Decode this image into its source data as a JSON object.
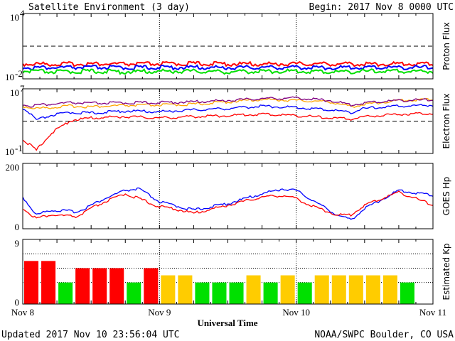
{
  "header": {
    "title": "Satellite Environment (3 day)",
    "begin": "Begin:  2017 Nov 8 0000 UTC"
  },
  "footer": {
    "updated": "Updated 2017 Nov 10 23:56:04 UTC",
    "credit": "NOAA/SWPC Boulder, CO USA"
  },
  "x_axis": {
    "label": "Universal Time",
    "ticks": [
      "Nov 8",
      "Nov 9",
      "Nov 10",
      "Nov 11"
    ]
  },
  "colors": {
    "red": "#ff0000",
    "blue": "#0000ff",
    "green": "#00e000",
    "orange": "#ffa500",
    "purple": "#800080",
    "yellow": "#ffcc00"
  },
  "chart_data": [
    {
      "type": "line",
      "panel": "proton",
      "ylabel": "Proton Flux",
      "yscale": "log",
      "ylim": [
        0.01,
        10000
      ],
      "ytick_major": "10",
      "ytick_top_exp": "4",
      "ytick_bottom_exp": "-2",
      "threshold": 10,
      "x": [
        0,
        0.25,
        0.5,
        0.75,
        1,
        1.25,
        1.5,
        1.75,
        2,
        2.25,
        2.5,
        2.75,
        3
      ],
      "series": [
        {
          "color": "red",
          "values": [
            0.19,
            0.18,
            0.19,
            0.18,
            0.19,
            0.2,
            0.19,
            0.18,
            0.19,
            0.19,
            0.18,
            0.19,
            0.19
          ]
        },
        {
          "color": "blue",
          "values": [
            0.09,
            0.085,
            0.09,
            0.085,
            0.09,
            0.09,
            0.085,
            0.09,
            0.09,
            0.085,
            0.09,
            0.09,
            0.09
          ]
        },
        {
          "color": "green",
          "values": [
            0.04,
            0.035,
            0.04,
            0.035,
            0.04,
            0.04,
            0.035,
            0.04,
            0.04,
            0.035,
            0.04,
            0.04,
            0.04
          ]
        }
      ]
    },
    {
      "type": "line",
      "panel": "electron",
      "ylabel": "Electron Flux",
      "yscale": "log",
      "ylim": [
        0.1,
        10000000
      ],
      "ytick_major": "10",
      "ytick_top_exp": "7",
      "ytick_bottom_exp": "-1",
      "threshold": 1000,
      "x": [
        0,
        0.05,
        0.1,
        0.2,
        0.35,
        0.5,
        0.75,
        1,
        1.25,
        1.5,
        1.75,
        2,
        2.25,
        2.4,
        2.5,
        2.75,
        3
      ],
      "series": [
        {
          "color": "orange",
          "values": [
            60000,
            40000,
            30000,
            40000,
            60000,
            50000,
            70000,
            80000,
            100000,
            200000,
            400000,
            300000,
            200000,
            50000,
            100000,
            300000,
            400000
          ]
        },
        {
          "color": "purple",
          "values": [
            100000,
            60000,
            80000,
            100000,
            150000,
            130000,
            150000,
            160000,
            200000,
            300000,
            500000,
            600000,
            300000,
            80000,
            150000,
            300000,
            350000
          ]
        },
        {
          "color": "blue",
          "values": [
            30000,
            8000,
            1000,
            4000,
            10000,
            8000,
            15000,
            12000,
            20000,
            30000,
            60000,
            40000,
            20000,
            10000,
            30000,
            60000,
            80000
          ]
        },
        {
          "color": "red",
          "values": [
            5,
            1,
            0.2,
            20,
            1000,
            2000,
            3000,
            2000,
            3000,
            4000,
            6000,
            4000,
            2000,
            1500,
            3000,
            6000,
            8000
          ]
        }
      ]
    },
    {
      "type": "line",
      "panel": "hp",
      "ylabel": "GOES Hp",
      "ylim": [
        0,
        200
      ],
      "yticks": [
        "200",
        "0"
      ],
      "x": [
        0,
        0.1,
        0.2,
        0.4,
        0.5,
        0.6,
        0.75,
        0.85,
        1,
        1.1,
        1.25,
        1.5,
        1.75,
        1.9,
        2,
        2.1,
        2.3,
        2.4,
        2.5,
        2.75,
        3
      ],
      "series": [
        {
          "color": "blue",
          "values": [
            95,
            40,
            55,
            50,
            70,
            90,
            115,
            120,
            80,
            70,
            55,
            75,
            105,
            120,
            115,
            90,
            40,
            25,
            60,
            115,
            100
          ]
        },
        {
          "color": "red",
          "values": [
            60,
            30,
            40,
            35,
            60,
            80,
            105,
            90,
            65,
            60,
            45,
            70,
            95,
            100,
            90,
            70,
            40,
            40,
            70,
            110,
            70
          ]
        }
      ]
    },
    {
      "type": "bar",
      "panel": "kp",
      "ylabel": "Estimated Kp",
      "ylim": [
        0,
        9
      ],
      "yticks": [
        "9",
        "0"
      ],
      "values": [
        6,
        6,
        3,
        5,
        5,
        5,
        3,
        5,
        4,
        4,
        3,
        3,
        3,
        4,
        3,
        4,
        3,
        4,
        4,
        4,
        4,
        4,
        3
      ],
      "bar_colors": [
        "red",
        "red",
        "green",
        "red",
        "red",
        "red",
        "green",
        "red",
        "yellow",
        "yellow",
        "green",
        "green",
        "green",
        "yellow",
        "green",
        "yellow",
        "green",
        "yellow",
        "yellow",
        "yellow",
        "yellow",
        "yellow",
        "green"
      ]
    }
  ]
}
